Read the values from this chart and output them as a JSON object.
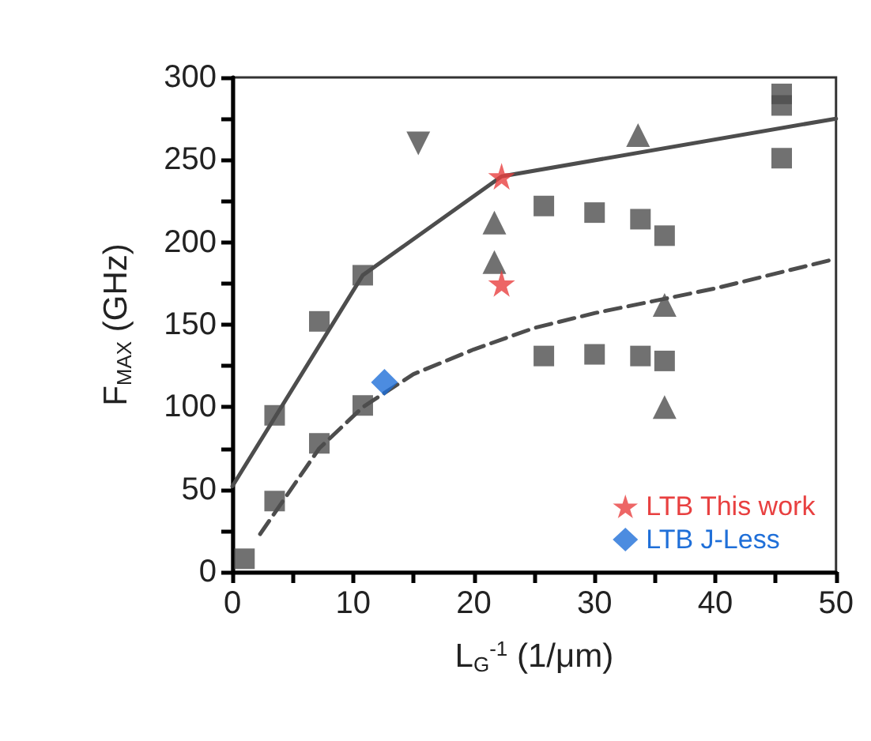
{
  "chart_data": {
    "type": "scatter",
    "xlabel": "L$_{G}$$^{-1}$ (1/μm)",
    "ylabel": "F$_{MAX}$ (GHz)",
    "xlim": [
      0,
      50
    ],
    "xticks": [
      0,
      10,
      20,
      30,
      40,
      50
    ],
    "ylim": [
      0,
      300
    ],
    "yticks": [
      0,
      50,
      100,
      150,
      200,
      250,
      300
    ],
    "grid": false,
    "legend": "bottom right",
    "series": [
      {
        "type": "line",
        "marker": "none",
        "line_style": "solid",
        "color": "#4d4d4d",
        "x": [
          0,
          10.8,
          22.3,
          50
        ],
        "values": [
          52,
          180,
          240,
          275
        ]
      },
      {
        "type": "line",
        "marker": "none",
        "line_style": "dashed",
        "color": "#4d4d4d",
        "x": [
          2.3,
          7.2,
          10.8,
          15,
          20,
          25,
          30,
          40,
          50
        ],
        "values": [
          23,
          75,
          100,
          120,
          135,
          148,
          157,
          172,
          190
        ]
      },
      {
        "marker": "square",
        "color": "#4d4d4d",
        "x": [
          3.5,
          7.2,
          10.8,
          25.8,
          30,
          33.8,
          35.8,
          45.5,
          45.5
        ],
        "values": [
          95,
          152,
          180,
          222,
          218,
          214,
          204,
          290,
          283
        ]
      },
      {
        "marker": "square",
        "color": "#4d4d4d",
        "x": [
          1,
          3.5,
          7.2,
          10.8,
          25.8,
          30,
          33.8,
          35.8,
          45.5
        ],
        "values": [
          8,
          43,
          78,
          101,
          131,
          132,
          131,
          128,
          251
        ]
      },
      {
        "marker": "triangle",
        "color": "#4d4d4d",
        "x": [
          21.7,
          33.6,
          35.8
        ],
        "values": [
          212,
          265,
          162
        ]
      },
      {
        "marker": "triangle",
        "color": "#4d4d4d",
        "x": [
          21.7,
          35.8
        ],
        "values": [
          188,
          100
        ]
      },
      {
        "marker": "triangle-down",
        "color": "#4d4d4d",
        "x": [
          15.4
        ],
        "values": [
          260
        ]
      },
      {
        "marker": "star",
        "color": "#e84040",
        "x": [
          22.3
        ],
        "values": [
          175
        ]
      },
      {
        "name": "LTB This work",
        "marker": "star",
        "color": "#e84040",
        "x": [
          22.3
        ],
        "values": [
          240
        ]
      },
      {
        "name": "LTB J-Less",
        "marker": "diamond",
        "color": "#1f6fd8",
        "x": [
          12.6
        ],
        "values": [
          115
        ]
      }
    ]
  }
}
